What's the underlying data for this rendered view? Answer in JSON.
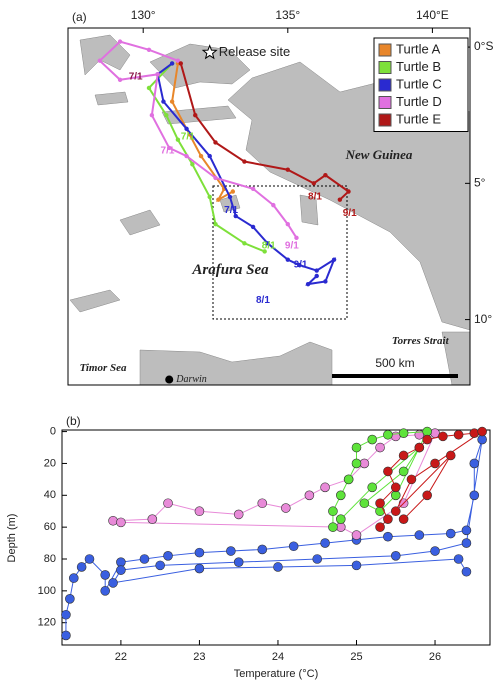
{
  "chart_data": [
    {
      "type": "map",
      "panel": "(a)",
      "xlim": [
        127.4,
        141.3
      ],
      "ylim": [
        -12.4,
        0.7
      ],
      "xticks": [
        {
          "value": 130,
          "label": "130°"
        },
        {
          "value": 135,
          "label": "135°"
        },
        {
          "value": 140,
          "label": "140°E"
        }
      ],
      "yticks": [
        {
          "value": 0,
          "label": "0°S"
        },
        {
          "value": -5,
          "label": "5°"
        },
        {
          "value": -10,
          "label": "10°"
        }
      ],
      "legend": "upper right",
      "series": [
        {
          "name": "Turtle A",
          "color": "#e8862a",
          "x": [
            131.2,
            131.0,
            131.6,
            132.0,
            132.8,
            132.6,
            133.1
          ],
          "values": [
            -0.6,
            -2.0,
            -3.2,
            -4.0,
            -5.2,
            -5.6,
            -5.3
          ]
        },
        {
          "name": "Turtle B",
          "color": "#7ee03a",
          "x": [
            131.0,
            130.2,
            130.8,
            131.2,
            131.7,
            132.3,
            132.5,
            133.5,
            134.2
          ],
          "values": [
            -0.6,
            -1.5,
            -2.5,
            -3.4,
            -4.3,
            -5.5,
            -6.5,
            -7.2,
            -7.5
          ]
        },
        {
          "name": "Turtle C",
          "color": "#2a2ad0",
          "x": [
            131.0,
            130.5,
            130.7,
            131.5,
            132.3,
            133.0,
            133.2,
            133.8,
            134.3,
            135.0,
            135.4,
            136.0,
            136.6,
            136.3,
            135.7,
            136.0
          ],
          "values": [
            -0.6,
            -1.0,
            -2.0,
            -3.0,
            -4.0,
            -5.5,
            -6.2,
            -6.6,
            -7.2,
            -7.8,
            -8.0,
            -8.2,
            -7.8,
            -8.6,
            -8.7,
            -8.4
          ]
        },
        {
          "name": "Turtle D",
          "color": "#e070e0",
          "x": [
            131.2,
            130.2,
            129.2,
            128.5,
            129.2,
            130.5,
            130.3,
            130.9,
            131.5,
            132.5,
            133.8,
            134.5,
            135.0,
            135.3
          ],
          "values": [
            -0.5,
            -0.1,
            0.2,
            -0.5,
            -1.2,
            -1.0,
            -2.5,
            -3.7,
            -4.0,
            -4.8,
            -5.2,
            -5.8,
            -6.5,
            -7.0
          ]
        },
        {
          "name": "Turtle E",
          "color": "#b01818",
          "x": [
            131.3,
            131.8,
            132.5,
            133.5,
            135.0,
            135.9,
            136.3,
            137.1,
            136.8
          ],
          "values": [
            -0.6,
            -2.5,
            -3.5,
            -4.2,
            -4.5,
            -5.0,
            -4.7,
            -5.3,
            -5.6
          ]
        }
      ],
      "release_site": {
        "label": "Release site",
        "x": 132.3,
        "y": -0.2
      },
      "places": [
        {
          "label": "New Guinea",
          "x": 137.0,
          "y": -4.0,
          "size": 13
        },
        {
          "label": "Arafura Sea",
          "x": 131.7,
          "y": -8.2,
          "size": 15
        },
        {
          "label": "Torres Strait",
          "x": 138.6,
          "y": -10.8,
          "size": 11
        },
        {
          "label": "Timor Sea",
          "x": 127.8,
          "y": -11.8,
          "size": 11
        }
      ],
      "city": {
        "label": "Darwin",
        "x": 130.9,
        "y": -12.2
      },
      "scale_bar": "500 km",
      "annotations": [
        {
          "text": "7/1",
          "x": 129.5,
          "y": -1.1,
          "color": "#8b1a4a"
        },
        {
          "text": "7/1",
          "x": 130.6,
          "y": -3.8,
          "color": "#e070e0"
        },
        {
          "text": "7/1",
          "x": 131.3,
          "y": -3.3,
          "color": "#7ee03a"
        },
        {
          "text": "7/1",
          "x": 132.8,
          "y": -6.0,
          "color": "#2a2ad0"
        },
        {
          "text": "8/1",
          "x": 134.1,
          "y": -7.3,
          "color": "#7ee03a"
        },
        {
          "text": "9/1",
          "x": 134.9,
          "y": -7.3,
          "color": "#e070e0"
        },
        {
          "text": "9/1",
          "x": 135.2,
          "y": -8.0,
          "color": "#2a2ad0"
        },
        {
          "text": "8/1",
          "x": 133.9,
          "y": -9.3,
          "color": "#2a2ad0"
        },
        {
          "text": "8/1",
          "x": 135.7,
          "y": -5.5,
          "color": "#b01818"
        },
        {
          "text": "9/1",
          "x": 136.9,
          "y": -6.1,
          "color": "#b01818"
        }
      ]
    },
    {
      "type": "scatter",
      "panel": "(b)",
      "xlabel": "Temperature (°C)",
      "ylabel": "Depth (m)",
      "xlim": [
        21.25,
        26.7
      ],
      "ylim": [
        134,
        -1
      ],
      "xticks": [
        22,
        23,
        24,
        25,
        26
      ],
      "yticks": [
        0,
        20,
        40,
        60,
        80,
        100,
        120
      ],
      "series": [
        {
          "color": "#3a5fe0",
          "x": [
            21.3,
            21.3,
            21.35,
            21.4,
            21.5,
            21.6,
            21.8,
            21.8,
            22.0,
            22.3,
            22.6,
            23.0,
            23.4,
            23.8,
            24.2,
            24.6,
            25.0,
            25.4,
            25.8,
            26.2,
            26.4,
            26.5,
            26.5,
            26.6,
            26.4,
            26.0,
            25.5,
            24.5,
            23.5,
            22.5,
            22.0,
            21.9,
            23.0,
            24.0,
            25.0,
            26.3,
            26.4
          ],
          "values": [
            128,
            115,
            105,
            92,
            85,
            80,
            90,
            100,
            82,
            80,
            78,
            76,
            75,
            74,
            72,
            70,
            68,
            66,
            65,
            64,
            62,
            40,
            20,
            5,
            70,
            75,
            78,
            80,
            82,
            84,
            87,
            95,
            86,
            85,
            84,
            80,
            88
          ]
        },
        {
          "color": "#e88ad8",
          "x": [
            21.9,
            22.4,
            22.6,
            23.0,
            23.5,
            23.8,
            24.1,
            24.4,
            24.6,
            24.9,
            25.1,
            25.3,
            25.5,
            25.8,
            26.0,
            25.6,
            25.0,
            24.8,
            22.0
          ],
          "values": [
            56,
            55,
            45,
            50,
            52,
            45,
            48,
            40,
            35,
            30,
            20,
            10,
            3,
            2,
            1,
            45,
            65,
            60,
            57
          ]
        },
        {
          "color": "#5ee33a",
          "x": [
            24.7,
            24.7,
            24.8,
            24.9,
            25.0,
            25.0,
            25.2,
            25.4,
            25.6,
            25.9,
            25.5,
            25.3,
            25.1,
            25.6,
            25.8,
            25.2,
            24.8
          ],
          "values": [
            60,
            50,
            40,
            30,
            20,
            10,
            5,
            2,
            1,
            0,
            40,
            50,
            45,
            25,
            10,
            35,
            55
          ]
        },
        {
          "color": "#c81818",
          "x": [
            25.3,
            25.4,
            25.3,
            25.5,
            25.4,
            25.6,
            25.8,
            25.9,
            26.1,
            26.3,
            26.5,
            26.6,
            26.0,
            25.7,
            25.5,
            26.2,
            25.9,
            25.6
          ],
          "values": [
            60,
            55,
            45,
            35,
            25,
            15,
            10,
            5,
            3,
            2,
            1,
            0,
            20,
            30,
            50,
            15,
            40,
            55
          ]
        }
      ]
    }
  ]
}
